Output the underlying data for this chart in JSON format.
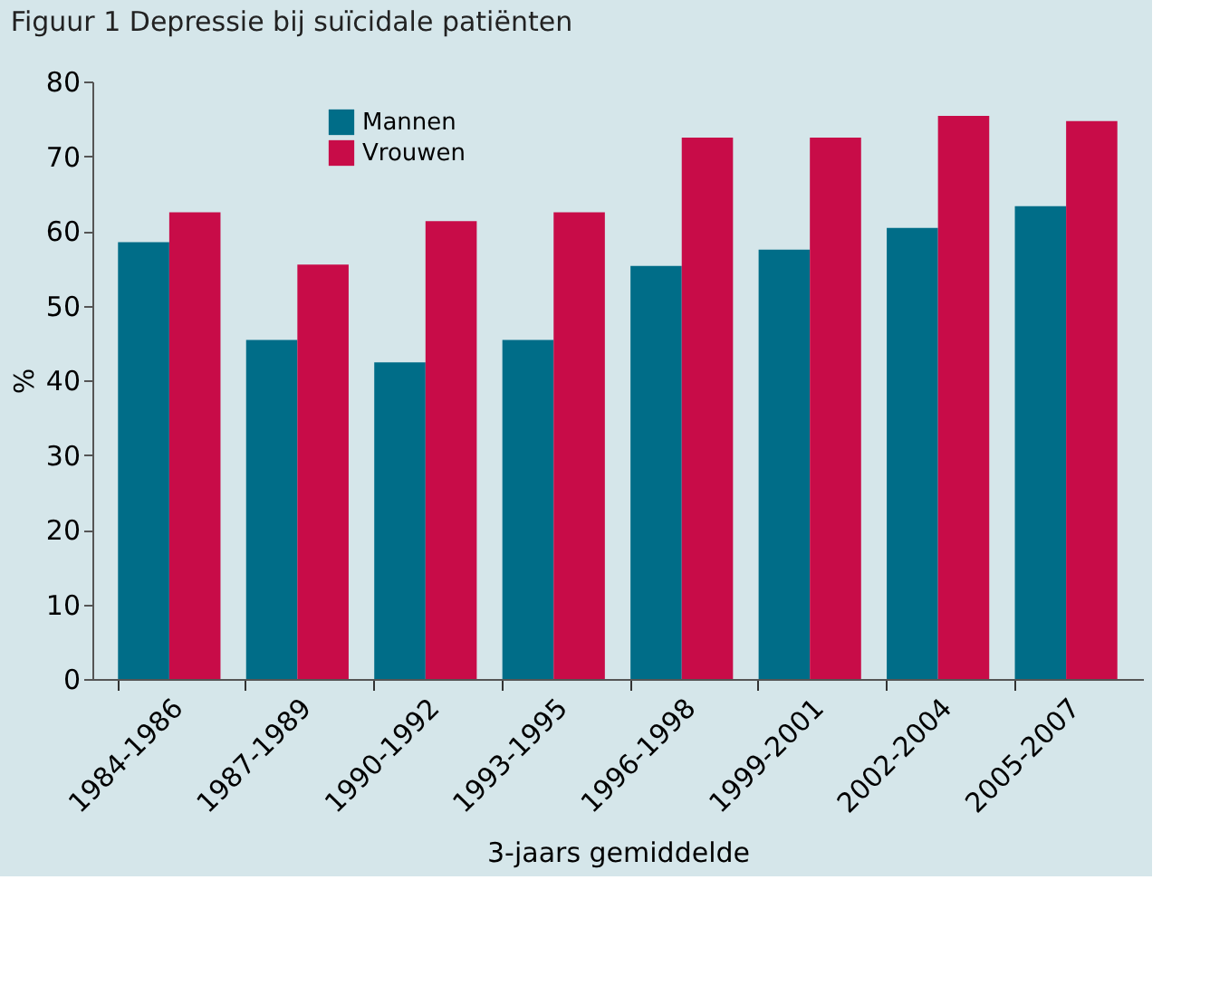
{
  "chart_data": {
    "type": "bar",
    "title": "Figuur 1  Depressie bij suïcidale patiënten",
    "xlabel": "3-jaars gemiddelde",
    "ylabel": "%",
    "categories": [
      "1984-1986",
      "1987-1989",
      "1990-1992",
      "1993-1995",
      "1996-1998",
      "1999-2001",
      "2002-2004",
      "2005-2007"
    ],
    "series": [
      {
        "name": "Mannen",
        "color": "#006d88",
        "values": [
          58.5,
          45.4,
          42.4,
          45.4,
          55.3,
          57.5,
          60.4,
          63.3
        ]
      },
      {
        "name": "Vrouwen",
        "color": "#c80c48",
        "values": [
          62.5,
          55.5,
          61.3,
          62.5,
          72.5,
          72.5,
          75.4,
          74.7
        ]
      }
    ],
    "ylim": [
      0,
      80
    ],
    "yticks": [
      0,
      10,
      20,
      30,
      40,
      50,
      60,
      70,
      80
    ],
    "grid": false,
    "legend": "top left"
  }
}
